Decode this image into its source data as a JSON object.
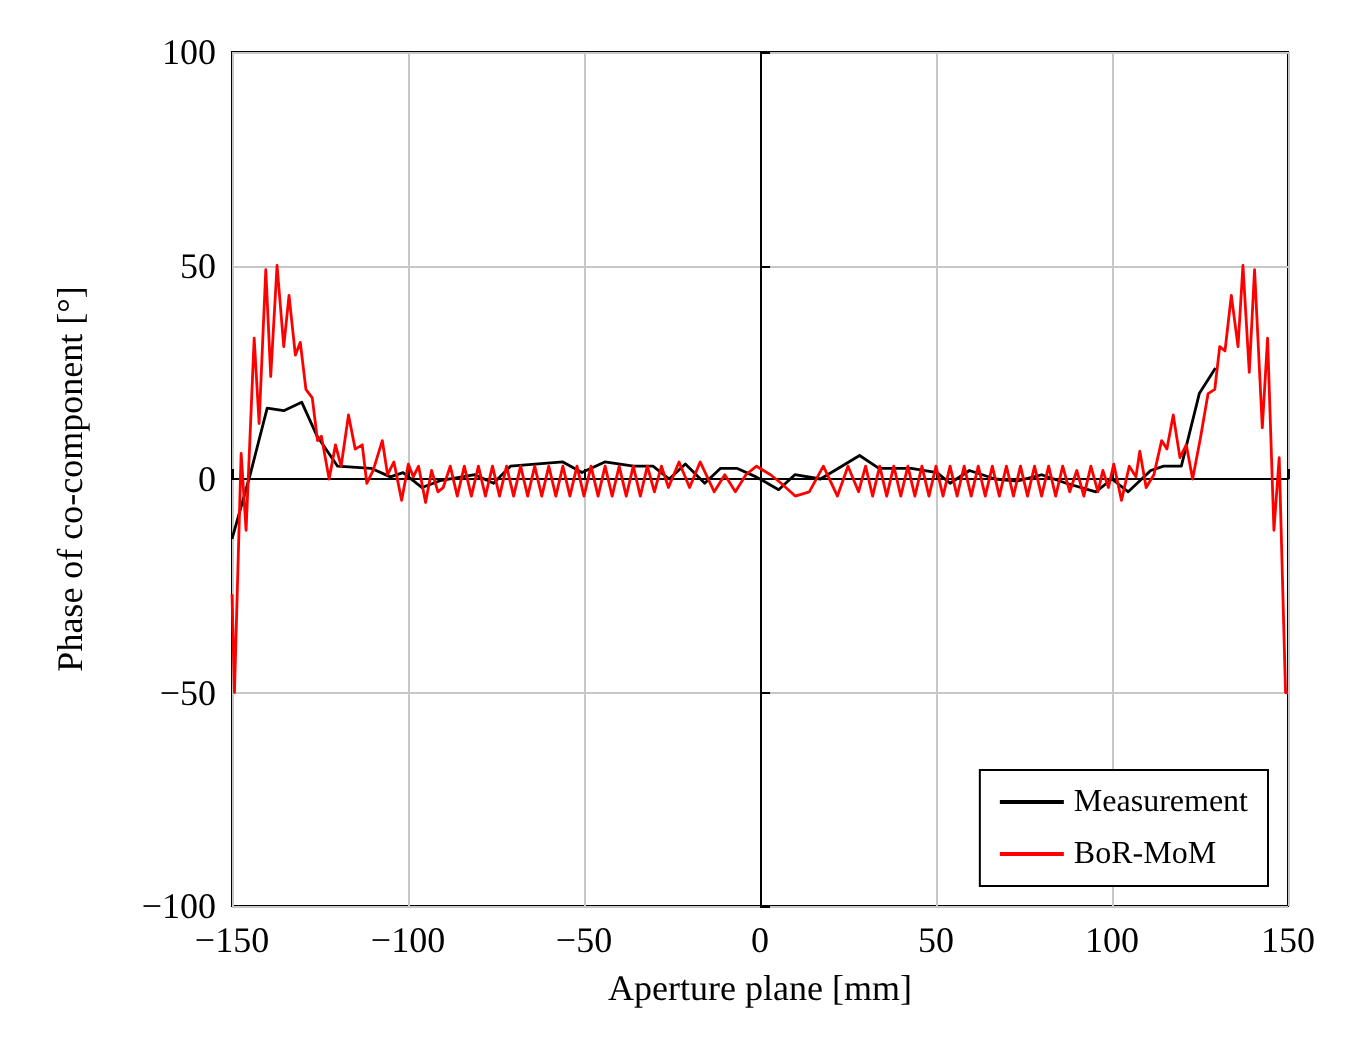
{
  "chart_data": {
    "type": "line",
    "xlabel": "Aperture plane [mm]",
    "ylabel": "Phase of co-component [°]",
    "xlim": [
      -150,
      150
    ],
    "ylim": [
      -100,
      100
    ],
    "xticks": [
      {
        "value": -150,
        "label": "−150"
      },
      {
        "value": -100,
        "label": "−100"
      },
      {
        "value": -50,
        "label": "−50"
      },
      0,
      50,
      100,
      150
    ],
    "yticks": [
      {
        "value": -100,
        "label": "−100"
      },
      {
        "value": -50,
        "label": "−50"
      },
      0,
      50,
      100
    ],
    "grid": true,
    "legend": "bottom right",
    "marker": "none",
    "line_style": "solid",
    "series": [
      {
        "name": "Measurement",
        "color": "#000000",
        "x": [
          -150,
          -145,
          -140,
          -135.3,
          -130.2,
          -125.8,
          -120,
          -110.5,
          -105,
          -101.4,
          -96,
          -90.5,
          -81,
          -75.7,
          -70.9,
          -56,
          -50.6,
          -44.1,
          -35.9,
          -30.4,
          -25.8,
          -21.2,
          -15.7,
          -11.2,
          -6.6,
          -1.1,
          5.3,
          9.9,
          17.2,
          28.3,
          33.8,
          43,
          50.3,
          54,
          59.5,
          66.8,
          73,
          80,
          87,
          95.4,
          100,
          104.6,
          111,
          114.7,
          119.7,
          124.8,
          129.4
        ],
        "values": [
          -14,
          0.5,
          16.6,
          16,
          18,
          10,
          3,
          2.5,
          0.5,
          1.5,
          -2,
          -0.3,
          1,
          -1,
          3,
          4,
          1.5,
          4,
          3,
          3,
          0,
          3.5,
          -1,
          2.5,
          2.5,
          0.5,
          -2.5,
          1,
          0,
          5.5,
          2.5,
          2.5,
          1.5,
          -1,
          2,
          0,
          -0.5,
          1,
          -1,
          -3,
          0,
          -3,
          2,
          3,
          3,
          20,
          26
        ]
      },
      {
        "name": "BoR-MoM",
        "color": "#ff0000",
        "x": [
          -150,
          -149.3,
          -147.4,
          -146,
          -143.7,
          -142.3,
          -140.4,
          -139,
          -137.2,
          -135.3,
          -133.8,
          -132,
          -130.6,
          -129,
          -127.2,
          -125.7,
          -124.6,
          -122.4,
          -120.6,
          -119,
          -116.9,
          -115,
          -113,
          -111.7,
          -109.9,
          -107.3,
          -105.8,
          -104,
          -101.8,
          -99.9,
          -98.5,
          -97,
          -95,
          -93.3,
          -91.5,
          -90,
          -88,
          -86,
          -84,
          -82,
          -80,
          -78,
          -76,
          -74,
          -72,
          -70,
          -68,
          -66,
          -64,
          -62,
          -60,
          -58,
          -56,
          -54,
          -52,
          -50,
          -48,
          -46,
          -44,
          -42,
          -40,
          -38,
          -36,
          -34,
          -32,
          -30,
          -28,
          -26,
          -23,
          -20,
          -17,
          -13,
          -10,
          -7,
          -4,
          -1,
          3,
          6,
          10,
          14,
          18,
          22,
          25,
          28,
          30,
          32,
          34,
          36,
          38,
          40,
          42,
          44,
          46,
          48,
          50,
          52,
          54,
          56,
          58,
          60,
          62,
          64,
          66,
          68,
          70,
          72,
          74,
          76,
          78,
          80,
          82,
          84,
          86,
          88,
          90,
          92,
          94,
          96,
          97.4,
          99,
          100.5,
          102.7,
          104.9,
          106.8,
          107.9,
          109.7,
          111.9,
          114.1,
          115.6,
          117.4,
          119.3,
          121.1,
          122.9,
          125.1,
          127.3,
          129.2,
          130.6,
          132.1,
          133.9,
          135.8,
          137.2,
          139,
          140.5,
          142.7,
          144.2,
          146,
          147.5,
          149.3,
          150
        ],
        "values": [
          -27,
          -50,
          6,
          -12,
          33,
          13,
          49,
          24,
          50,
          31,
          43,
          29,
          32,
          21,
          19,
          9,
          10,
          0,
          8,
          3,
          15,
          7,
          8,
          -1,
          2,
          9,
          1,
          4,
          -5,
          3.5,
          0.5,
          3,
          -5.5,
          2,
          -3,
          -2,
          3,
          -4,
          3,
          -4,
          3,
          -4,
          3,
          -4,
          3,
          -4,
          3,
          -4,
          3,
          -4,
          3,
          -4,
          3,
          -4,
          3,
          -4,
          3,
          -4,
          3,
          -4,
          3,
          -4,
          3,
          -4,
          3,
          -3,
          3,
          -2,
          4,
          -2,
          4,
          -3,
          1,
          -3,
          1,
          3,
          1,
          -1,
          -4,
          -3,
          3,
          -4,
          3,
          -3,
          3,
          -4,
          3,
          -4,
          3,
          -4,
          3,
          -4,
          3,
          -4,
          3,
          -4,
          3,
          -4,
          3,
          -4,
          3,
          -4,
          3,
          -4,
          3,
          -4,
          3,
          -4,
          3,
          -4,
          3,
          -4,
          3,
          -3,
          2,
          -4,
          3,
          -3,
          2,
          -2,
          3.5,
          -5,
          3,
          0.5,
          6.5,
          -2,
          1,
          9,
          7,
          15,
          5,
          8,
          0,
          9.5,
          20,
          21,
          31,
          30,
          43,
          31,
          50,
          25,
          49,
          12,
          33,
          -12,
          5,
          -50,
          -50
        ]
      }
    ]
  }
}
